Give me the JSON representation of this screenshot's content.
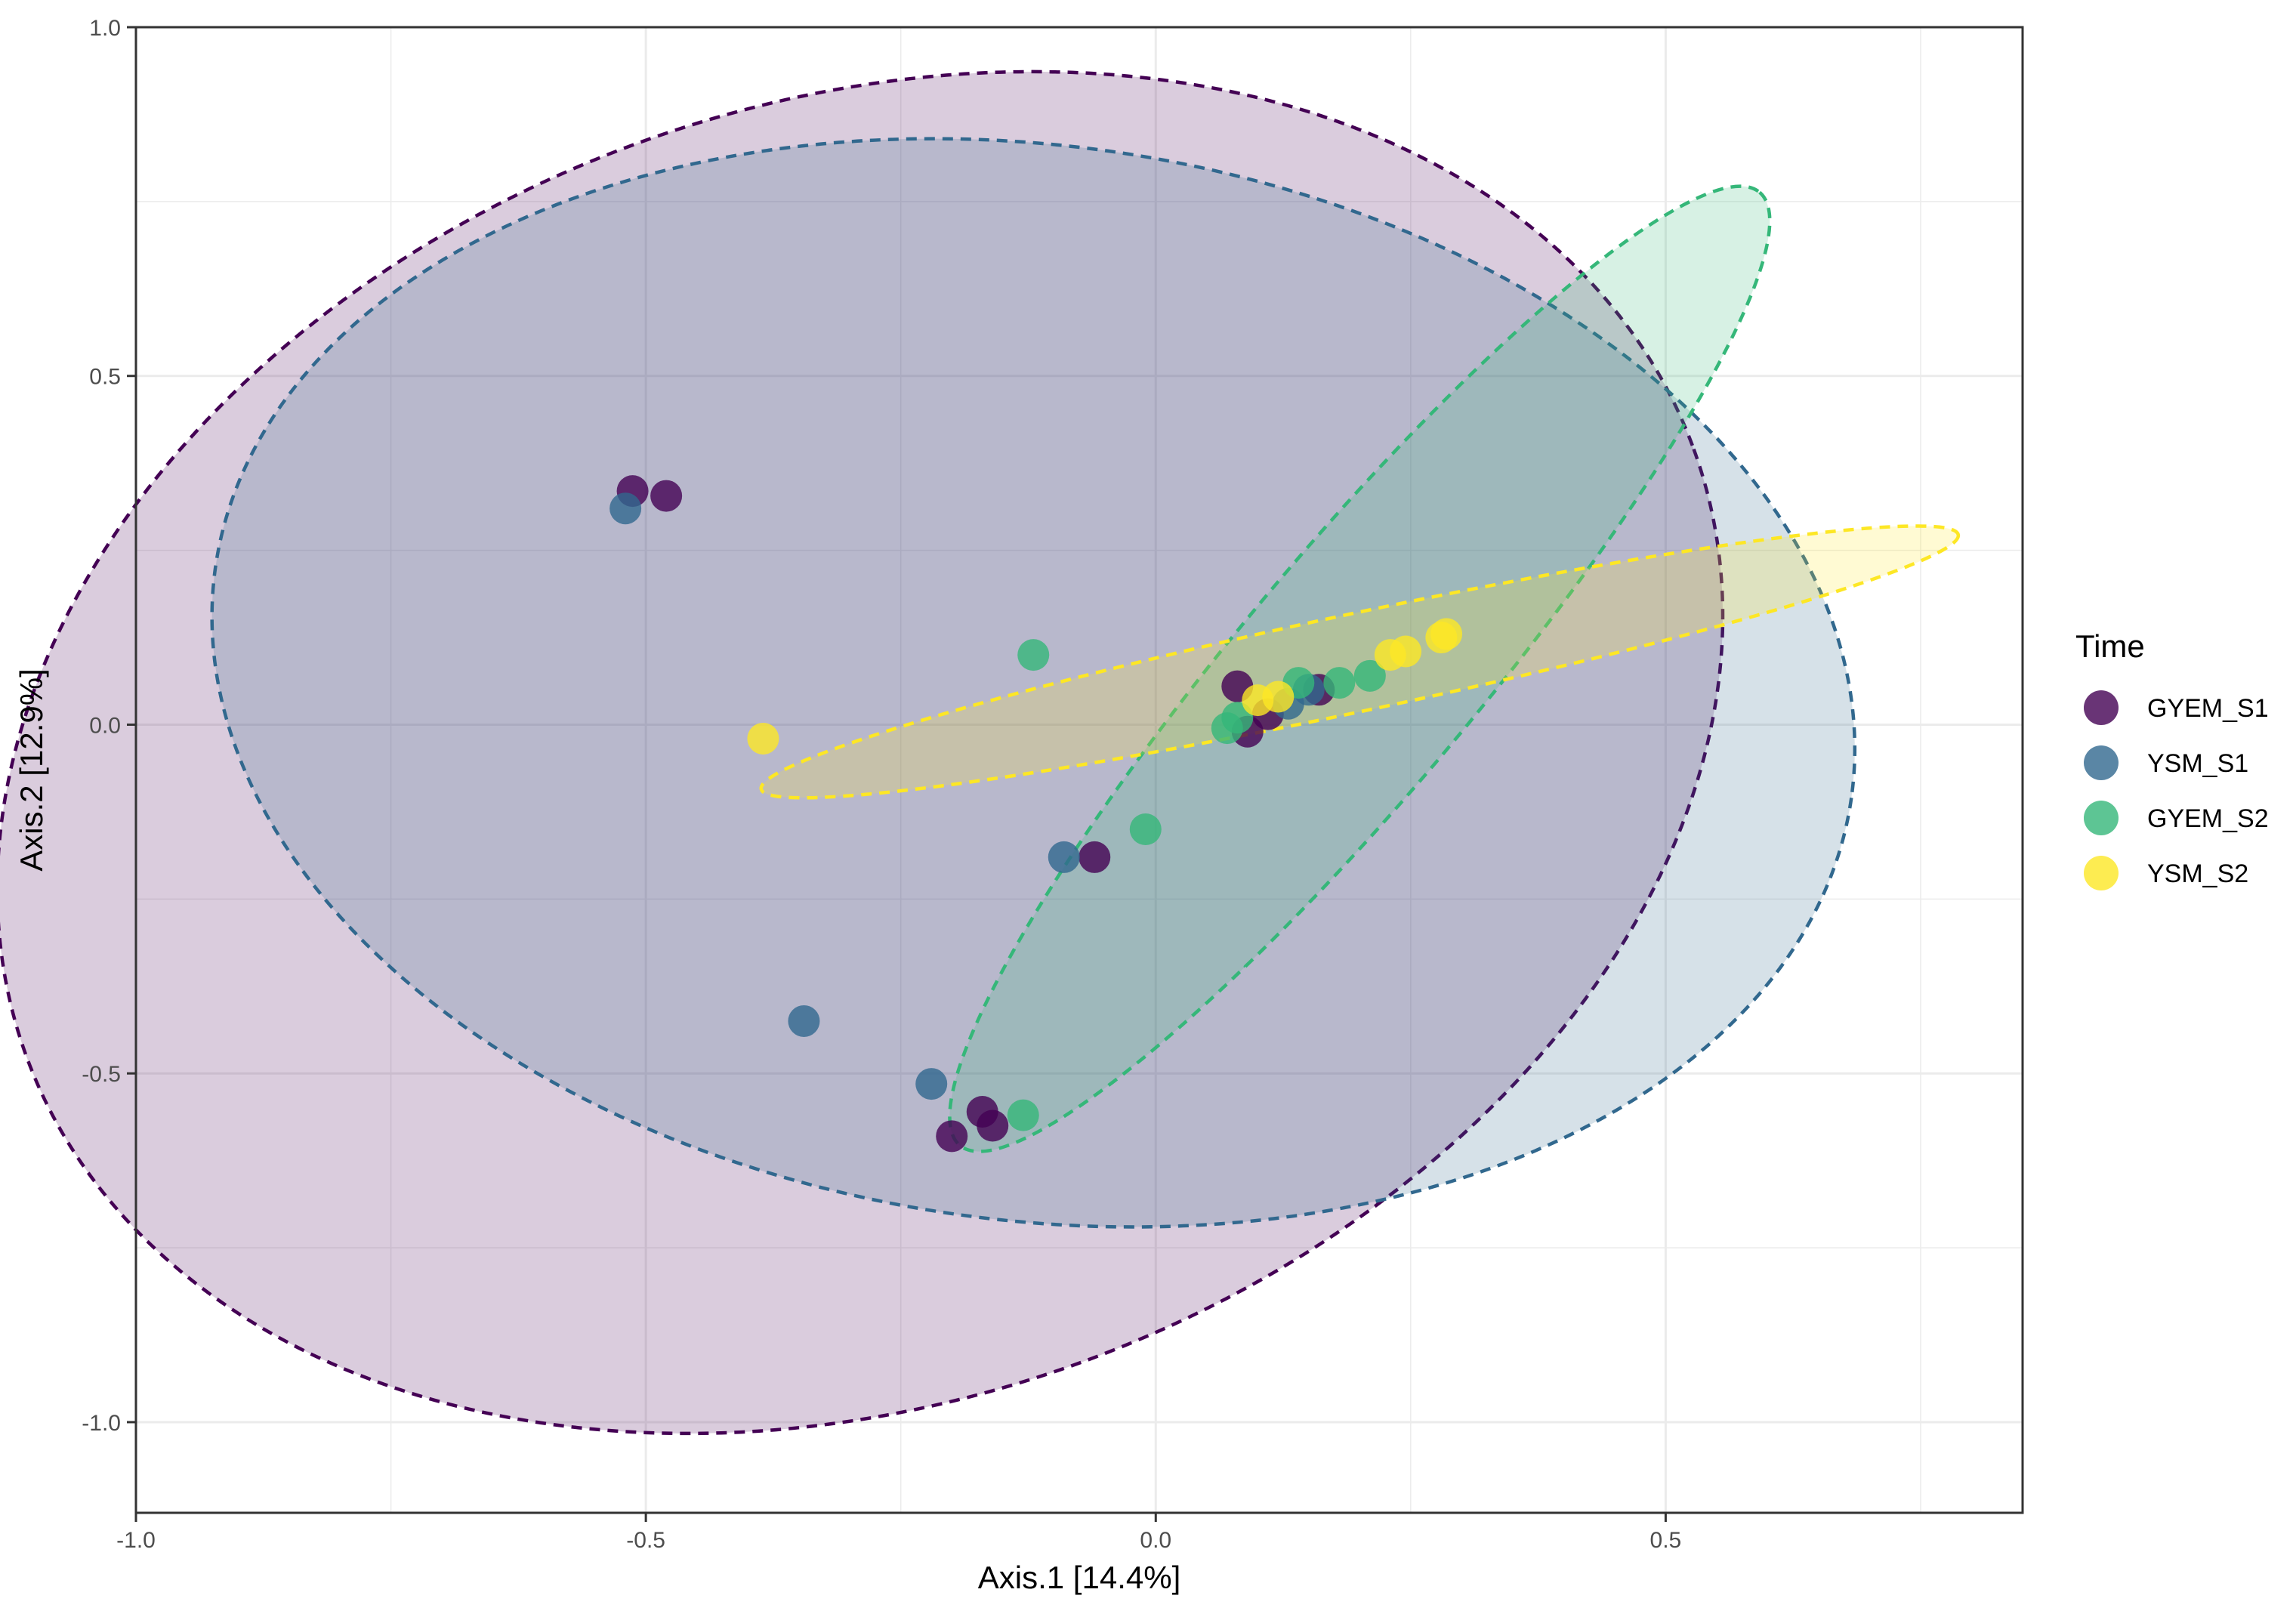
{
  "chart_data": {
    "type": "scatter",
    "title": "",
    "xlabel": "Axis.1   [14.4%]",
    "ylabel": "Axis.2   [12.9%]",
    "xlim": [
      -1.0,
      0.85
    ],
    "ylim": [
      -1.13,
      1.0
    ],
    "x_ticks": [
      -1.0,
      -0.5,
      0.0,
      0.5
    ],
    "x_tick_labels": [
      "-1.0",
      "-0.5",
      "0.0",
      "0.5"
    ],
    "y_ticks": [
      1.0,
      0.5,
      0.0,
      -0.5,
      -1.0
    ],
    "y_tick_labels": [
      "1.0",
      "0.5",
      "0.0",
      "-0.5",
      "-1.0"
    ],
    "grid": true,
    "legend": {
      "title": "Time",
      "position": "right"
    },
    "series": [
      {
        "name": "GYEM_S1",
        "color": "#440154",
        "ellipse": {
          "center": [
            -0.29,
            -0.04
          ],
          "rx": 0.87,
          "ry": 0.93,
          "rotate_deg": 20
        },
        "points": [
          [
            -0.513,
            0.335
          ],
          [
            -0.48,
            0.328
          ],
          [
            -0.06,
            -0.19
          ],
          [
            -0.17,
            -0.555
          ],
          [
            -0.2,
            -0.59
          ],
          [
            -0.16,
            -0.575
          ],
          [
            0.08,
            0.055
          ],
          [
            0.09,
            -0.01
          ],
          [
            0.11,
            0.015
          ],
          [
            0.16,
            0.05
          ]
        ]
      },
      {
        "name": "YSM_S1",
        "color": "#31688E",
        "ellipse": {
          "center": [
            -0.12,
            0.06
          ],
          "rx": 0.81,
          "ry": 0.77,
          "rotate_deg": -8
        },
        "points": [
          [
            -0.52,
            0.31
          ],
          [
            -0.345,
            -0.425
          ],
          [
            -0.22,
            -0.515
          ],
          [
            -0.09,
            -0.19
          ],
          [
            0.13,
            0.03
          ],
          [
            0.15,
            0.05
          ]
        ]
      },
      {
        "name": "GYEM_S2",
        "color": "#35B779",
        "ellipse": {
          "center": [
            0.2,
            0.08
          ],
          "rx": 0.61,
          "ry": 0.17,
          "rotate_deg": 50
        },
        "points": [
          [
            -0.12,
            0.1
          ],
          [
            -0.01,
            -0.15
          ],
          [
            -0.13,
            -0.56
          ],
          [
            0.08,
            0.01
          ],
          [
            0.07,
            -0.005
          ],
          [
            0.14,
            0.06
          ],
          [
            0.18,
            0.06
          ],
          [
            0.21,
            0.07
          ]
        ]
      },
      {
        "name": "YSM_S2",
        "color": "#FDE725",
        "ellipse": {
          "center": [
            0.2,
            0.09
          ],
          "rx": 0.6,
          "ry": 0.07,
          "rotate_deg": 12
        },
        "points": [
          [
            -0.385,
            -0.02
          ],
          [
            0.1,
            0.035
          ],
          [
            0.12,
            0.04
          ],
          [
            0.23,
            0.1
          ],
          [
            0.245,
            0.105
          ],
          [
            0.28,
            0.125
          ],
          [
            0.285,
            0.13
          ]
        ]
      }
    ]
  }
}
